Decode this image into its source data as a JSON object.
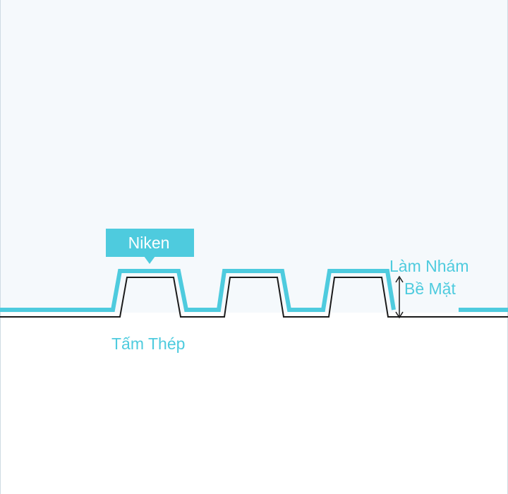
{
  "colors": {
    "background_upper": "#f5f9fc",
    "background_lower": "#ffffff",
    "accent": "#4ecbde",
    "steel_outline": "#1a1a1a",
    "callout_text": "#ffffff",
    "border": "#cfdbe3"
  },
  "labels": {
    "nickel": "Niken",
    "steel_plate": "Tấm Thép",
    "roughening_line1": "Làm Nhám",
    "roughening_line2": "Bề Mặt"
  }
}
